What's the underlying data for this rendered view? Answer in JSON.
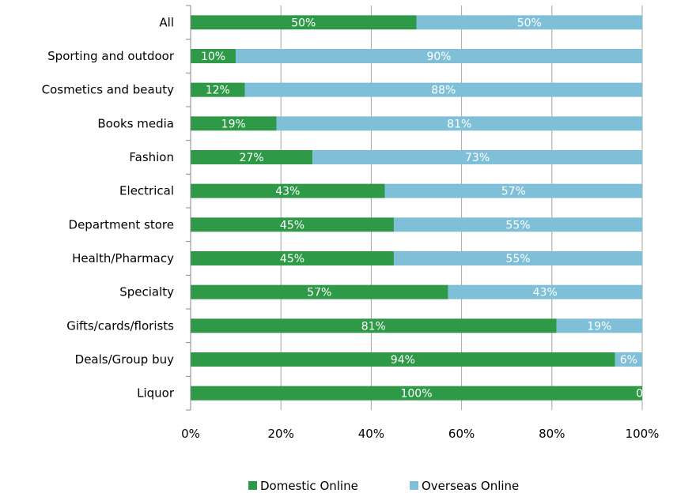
{
  "chart_data": {
    "type": "bar",
    "orientation": "horizontal",
    "stacked": true,
    "percent_stacked": true,
    "categories": [
      "All",
      "Sporting and outdoor",
      "Cosmetics and beauty",
      "Books media",
      "Fashion",
      "Electrical",
      "Department store",
      "Health/Pharmacy",
      "Specialty",
      "Gifts/cards/florists",
      "Deals/Group buy",
      "Liquor"
    ],
    "series": [
      {
        "name": "Domestic Online",
        "color": "#2e9a48",
        "values": [
          50,
          10,
          12,
          19,
          27,
          43,
          45,
          45,
          57,
          81,
          94,
          100
        ],
        "labels": [
          "50%",
          "10%",
          "12%",
          "19%",
          "27%",
          "43%",
          "45%",
          "45%",
          "57%",
          "81%",
          "94%",
          "100%"
        ]
      },
      {
        "name": "Overseas Online",
        "color": "#7fc0d8",
        "values": [
          50,
          90,
          88,
          81,
          73,
          57,
          55,
          55,
          43,
          19,
          6,
          0
        ],
        "labels": [
          "50%",
          "90%",
          "88%",
          "81%",
          "73%",
          "57%",
          "55%",
          "55%",
          "43%",
          "19%",
          "6%",
          "0"
        ]
      }
    ],
    "x_ticks": [
      "0%",
      "20%",
      "40%",
      "60%",
      "80%",
      "100%"
    ],
    "xlim": [
      0,
      100
    ],
    "grid": "vertical",
    "legend_position": "bottom"
  }
}
